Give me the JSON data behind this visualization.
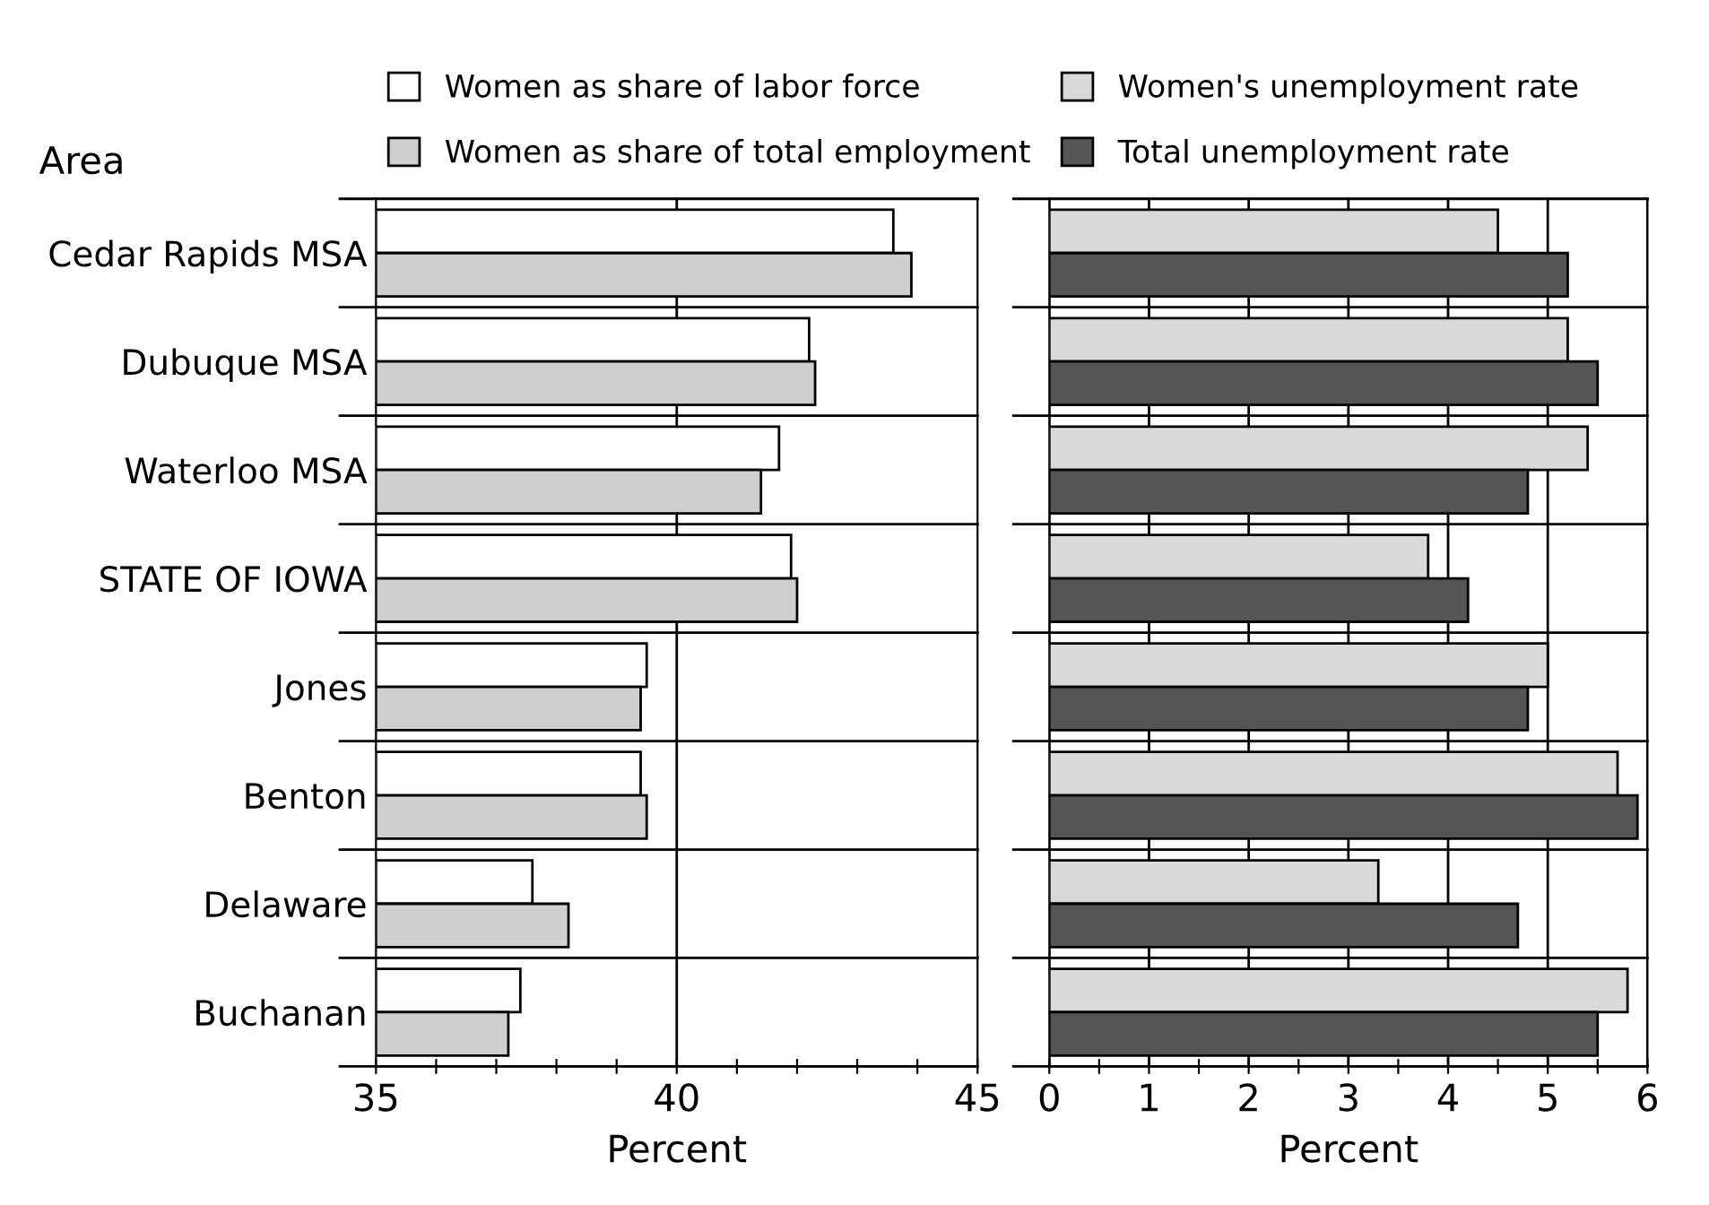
{
  "chart_data": [
    {
      "type": "bar",
      "orientation": "horizontal",
      "ylabel": "Area",
      "xlabel": "Percent",
      "categories": [
        "Cedar Rapids MSA",
        "Dubuque MSA",
        "Waterloo MSA",
        "STATE OF IOWA",
        "Jones",
        "Benton",
        "Delaware",
        "Buchanan"
      ],
      "series": [
        {
          "name": "Women as share of labor force",
          "color": "#ffffff",
          "values": [
            43.6,
            42.2,
            41.7,
            41.9,
            39.5,
            39.4,
            37.6,
            37.4
          ]
        },
        {
          "name": "Women as share of total employment",
          "color": "#cfcfcf",
          "values": [
            43.9,
            42.3,
            41.4,
            42.0,
            39.4,
            39.5,
            38.2,
            37.2
          ]
        }
      ],
      "xlim": [
        35,
        45
      ],
      "xticks": [
        35,
        {
          "value": 36,
          "label": null
        },
        {
          "value": 37,
          "label": null
        },
        {
          "value": 38,
          "label": null
        },
        {
          "value": 39,
          "label": null
        },
        40,
        {
          "value": 41,
          "label": null
        },
        {
          "value": 42,
          "label": null
        },
        {
          "value": 43,
          "label": null
        },
        {
          "value": 44,
          "label": null
        },
        45
      ],
      "ref_lines": [
        {
          "axis": "x",
          "value": 40,
          "color": "#000000"
        }
      ],
      "grid": "y",
      "legend": "top"
    },
    {
      "type": "bar",
      "orientation": "horizontal",
      "xlabel": "Percent",
      "categories": [
        null,
        null,
        null,
        null,
        null,
        null,
        null,
        null
      ],
      "series": [
        {
          "name": "Women's unemployment rate",
          "color": "#d9d9d9",
          "values": [
            4.5,
            5.2,
            5.4,
            3.8,
            5.0,
            5.7,
            3.3,
            5.8
          ]
        },
        {
          "name": "Total unemployment rate",
          "color": "#555555",
          "values": [
            5.2,
            5.5,
            4.8,
            4.2,
            4.8,
            5.9,
            4.7,
            5.5
          ]
        }
      ],
      "xlim": [
        0,
        6
      ],
      "xticks": [
        0,
        {
          "value": 0.5,
          "label": null
        },
        1,
        {
          "value": 1.5,
          "label": null
        },
        2,
        {
          "value": 2.5,
          "label": null
        },
        3,
        {
          "value": 3.5,
          "label": null
        },
        4,
        {
          "value": 4.5,
          "label": null
        },
        5,
        {
          "value": 5.5,
          "label": null
        },
        6
      ],
      "grid": true,
      "tick_labels": "x",
      "legend": "top"
    }
  ]
}
